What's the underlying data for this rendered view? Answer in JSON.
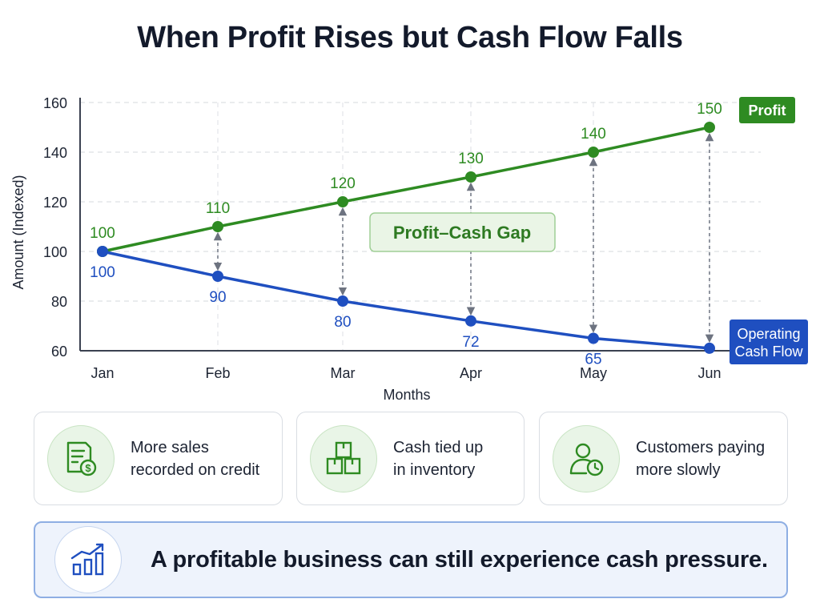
{
  "title": "When Profit Rises but Cash Flow Falls",
  "chart_data": {
    "type": "line",
    "categories": [
      "Jan",
      "Feb",
      "Mar",
      "Apr",
      "May",
      "Jun"
    ],
    "series": [
      {
        "name": "Profit",
        "values": [
          100,
          110,
          120,
          130,
          140,
          150
        ],
        "color": "#2e8b22"
      },
      {
        "name": "Operating Cash Flow",
        "values": [
          100,
          90,
          80,
          72,
          65,
          61
        ],
        "color": "#1f4fc0"
      }
    ],
    "data_labels": {
      "Profit": [
        "100",
        "110",
        "120",
        "130",
        "140",
        "150"
      ],
      "Operating Cash Flow": [
        "100",
        "90",
        "80",
        "72",
        "65",
        ""
      ]
    },
    "ylim": [
      60,
      160
    ],
    "yticks": [
      60,
      80,
      100,
      120,
      140,
      160
    ],
    "xlabel": "Months",
    "ylabel": "Amount (Indexed)",
    "grid": true,
    "annotation": "Profit–Cash Gap",
    "legend_labels": {
      "Profit": [
        "Profit"
      ],
      "Operating Cash Flow": [
        "Operating",
        "Cash Flow"
      ]
    }
  },
  "cards": [
    {
      "text": "More sales\nrecorded on credit",
      "icon": "invoice-dollar-icon"
    },
    {
      "text": "Cash tied up\nin inventory",
      "icon": "boxes-icon"
    },
    {
      "text": "Customers paying\nmore slowly",
      "icon": "person-clock-icon"
    }
  ],
  "banner": {
    "text": "A profitable business can still experience cash pressure.",
    "icon": "bar-chart-trend-icon"
  },
  "colors": {
    "profit": "#2e8b22",
    "cash": "#1f4fc0",
    "gap_fill": "#eaf5e6",
    "gap_stroke": "#9fcf95",
    "arrow": "#6d7380"
  }
}
